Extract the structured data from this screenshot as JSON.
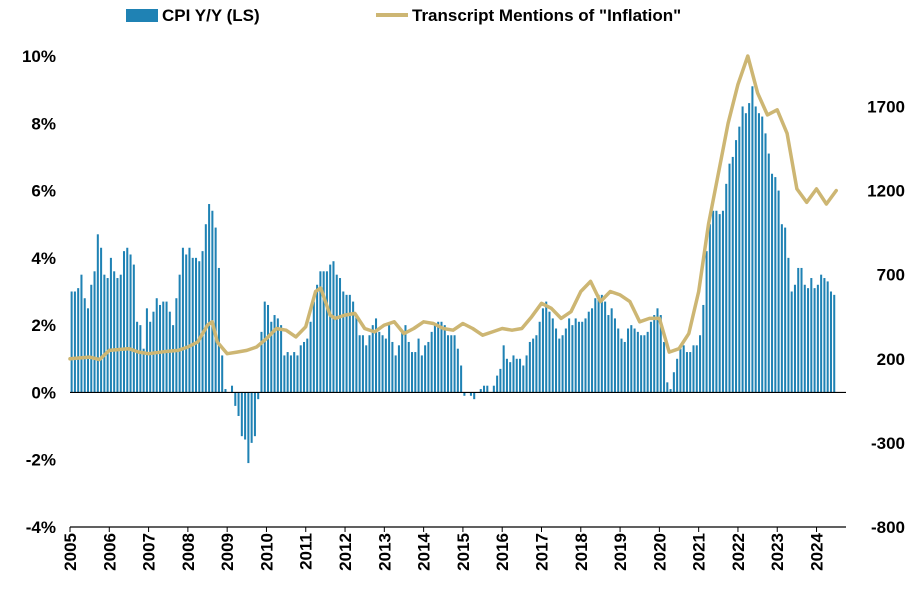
{
  "chart_data": {
    "type": "bar+line",
    "legend": [
      {
        "name": "CPI Y/Y (LS)",
        "kind": "bar",
        "color": "#1f82b4"
      },
      {
        "name": "Transcript Mentions of \"Inflation\"",
        "kind": "line",
        "color": "#cdb673"
      }
    ],
    "legend_placement": "top",
    "grid": false,
    "x_range": [
      2005,
      2024.75
    ],
    "x_tick_labels": [
      "2005",
      "2006",
      "2007",
      "2008",
      "2009",
      "2010",
      "2011",
      "2012",
      "2013",
      "2014",
      "2015",
      "2016",
      "2017",
      "2018",
      "2019",
      "2020",
      "2021",
      "2022",
      "2023",
      "2024"
    ],
    "left_axis": {
      "range": [
        -4,
        10
      ],
      "tick_values": [
        10,
        8,
        6,
        4,
        2,
        0,
        -2,
        -4
      ],
      "tick_labels": [
        "10%",
        "8%",
        "6%",
        "4%",
        "2%",
        "0%",
        "-2%",
        "-4%"
      ]
    },
    "right_axis": {
      "range": [
        -800,
        2000
      ],
      "tick_values": [
        1700,
        1200,
        700,
        200,
        -300,
        -800
      ],
      "tick_labels": [
        "1700",
        "1200",
        "700",
        "200",
        "-300",
        "-800"
      ]
    },
    "cpi_yoy": {
      "name": "CPI Y/Y (LS)",
      "x_start": 2005.0,
      "x_step": 0.0833,
      "values": [
        3.0,
        3.0,
        3.1,
        3.5,
        2.8,
        2.5,
        3.2,
        3.6,
        4.7,
        4.3,
        3.5,
        3.4,
        4.0,
        3.6,
        3.4,
        3.5,
        4.2,
        4.3,
        4.1,
        3.8,
        2.1,
        2.0,
        1.3,
        2.5,
        2.1,
        2.4,
        2.8,
        2.6,
        2.7,
        2.7,
        2.4,
        2.0,
        2.8,
        3.5,
        4.3,
        4.1,
        4.3,
        4.0,
        4.0,
        3.9,
        4.2,
        5.0,
        5.6,
        5.4,
        4.9,
        3.7,
        1.1,
        0.1,
        0.0,
        0.2,
        -0.4,
        -0.7,
        -1.3,
        -1.4,
        -2.1,
        -1.5,
        -1.3,
        -0.2,
        1.8,
        2.7,
        2.6,
        2.1,
        2.3,
        2.2,
        2.0,
        1.1,
        1.2,
        1.1,
        1.2,
        1.1,
        1.4,
        1.5,
        1.6,
        2.1,
        2.7,
        3.2,
        3.6,
        3.6,
        3.6,
        3.8,
        3.9,
        3.5,
        3.4,
        3.0,
        2.9,
        2.9,
        2.7,
        2.3,
        1.7,
        1.7,
        1.4,
        1.7,
        2.0,
        2.2,
        1.8,
        1.7,
        1.6,
        2.0,
        1.5,
        1.1,
        1.4,
        1.8,
        2.0,
        1.5,
        1.2,
        1.2,
        1.6,
        1.1,
        1.4,
        1.5,
        1.8,
        2.0,
        2.1,
        2.1,
        2.0,
        1.7,
        1.7,
        1.7,
        1.3,
        0.8,
        -0.1,
        0.0,
        -0.1,
        -0.2,
        0.0,
        0.1,
        0.2,
        0.2,
        0.0,
        0.2,
        0.5,
        0.7,
        1.4,
        1.0,
        0.9,
        1.1,
        1.0,
        1.0,
        0.8,
        1.1,
        1.5,
        1.6,
        1.7,
        2.1,
        2.5,
        2.7,
        2.4,
        2.2,
        1.9,
        1.6,
        1.7,
        1.9,
        2.2,
        2.0,
        2.2,
        2.1,
        2.1,
        2.2,
        2.4,
        2.5,
        2.8,
        2.9,
        2.9,
        2.7,
        2.3,
        2.5,
        2.2,
        1.9,
        1.6,
        1.5,
        1.9,
        2.0,
        1.9,
        1.8,
        1.7,
        1.7,
        1.8,
        2.1,
        2.3,
        2.5,
        2.3,
        1.5,
        0.3,
        0.1,
        0.6,
        1.0,
        1.3,
        1.4,
        1.2,
        1.2,
        1.4,
        1.4,
        1.7,
        2.6,
        4.2,
        5.0,
        5.4,
        5.4,
        5.3,
        5.4,
        6.2,
        6.8,
        7.0,
        7.5,
        7.9,
        8.5,
        8.3,
        8.6,
        9.1,
        8.5,
        8.3,
        8.2,
        7.7,
        7.1,
        6.5,
        6.4,
        6.0,
        5.0,
        4.9,
        4.0,
        3.0,
        3.2,
        3.7,
        3.7,
        3.2,
        3.1,
        3.4,
        3.1,
        3.2,
        3.5,
        3.4,
        3.3,
        3.0,
        2.9
      ]
    },
    "inflation_mentions": {
      "name": "Transcript Mentions of \"Inflation\"",
      "points": [
        [
          2005.0,
          200
        ],
        [
          2005.5,
          210
        ],
        [
          2005.75,
          195
        ],
        [
          2006.0,
          250
        ],
        [
          2006.5,
          260
        ],
        [
          2006.75,
          240
        ],
        [
          2007.0,
          230
        ],
        [
          2007.5,
          245
        ],
        [
          2007.75,
          250
        ],
        [
          2008.0,
          270
        ],
        [
          2008.25,
          300
        ],
        [
          2008.5,
          400
        ],
        [
          2008.62,
          420
        ],
        [
          2008.75,
          300
        ],
        [
          2009.0,
          230
        ],
        [
          2009.25,
          240
        ],
        [
          2009.5,
          250
        ],
        [
          2009.75,
          270
        ],
        [
          2010.0,
          320
        ],
        [
          2010.25,
          380
        ],
        [
          2010.5,
          370
        ],
        [
          2010.75,
          330
        ],
        [
          2011.0,
          390
        ],
        [
          2011.25,
          600
        ],
        [
          2011.38,
          620
        ],
        [
          2011.62,
          460
        ],
        [
          2011.75,
          440
        ],
        [
          2012.0,
          460
        ],
        [
          2012.25,
          470
        ],
        [
          2012.5,
          380
        ],
        [
          2012.75,
          360
        ],
        [
          2013.0,
          400
        ],
        [
          2013.25,
          420
        ],
        [
          2013.5,
          350
        ],
        [
          2013.75,
          380
        ],
        [
          2014.0,
          420
        ],
        [
          2014.25,
          410
        ],
        [
          2014.5,
          380
        ],
        [
          2014.75,
          370
        ],
        [
          2015.0,
          410
        ],
        [
          2015.25,
          380
        ],
        [
          2015.5,
          340
        ],
        [
          2015.75,
          360
        ],
        [
          2016.0,
          380
        ],
        [
          2016.25,
          370
        ],
        [
          2016.5,
          380
        ],
        [
          2016.75,
          450
        ],
        [
          2017.0,
          530
        ],
        [
          2017.25,
          500
        ],
        [
          2017.5,
          440
        ],
        [
          2017.75,
          480
        ],
        [
          2018.0,
          600
        ],
        [
          2018.25,
          660
        ],
        [
          2018.5,
          540
        ],
        [
          2018.75,
          600
        ],
        [
          2019.0,
          580
        ],
        [
          2019.25,
          540
        ],
        [
          2019.5,
          420
        ],
        [
          2019.75,
          440
        ],
        [
          2020.0,
          440
        ],
        [
          2020.25,
          240
        ],
        [
          2020.5,
          260
        ],
        [
          2020.75,
          350
        ],
        [
          2021.0,
          600
        ],
        [
          2021.25,
          1000
        ],
        [
          2021.5,
          1300
        ],
        [
          2021.75,
          1600
        ],
        [
          2022.0,
          1830
        ],
        [
          2022.25,
          2000
        ],
        [
          2022.5,
          1780
        ],
        [
          2022.75,
          1650
        ],
        [
          2023.0,
          1680
        ],
        [
          2023.25,
          1540
        ],
        [
          2023.5,
          1210
        ],
        [
          2023.75,
          1130
        ],
        [
          2024.0,
          1210
        ],
        [
          2024.25,
          1120
        ],
        [
          2024.5,
          1200
        ]
      ]
    }
  }
}
